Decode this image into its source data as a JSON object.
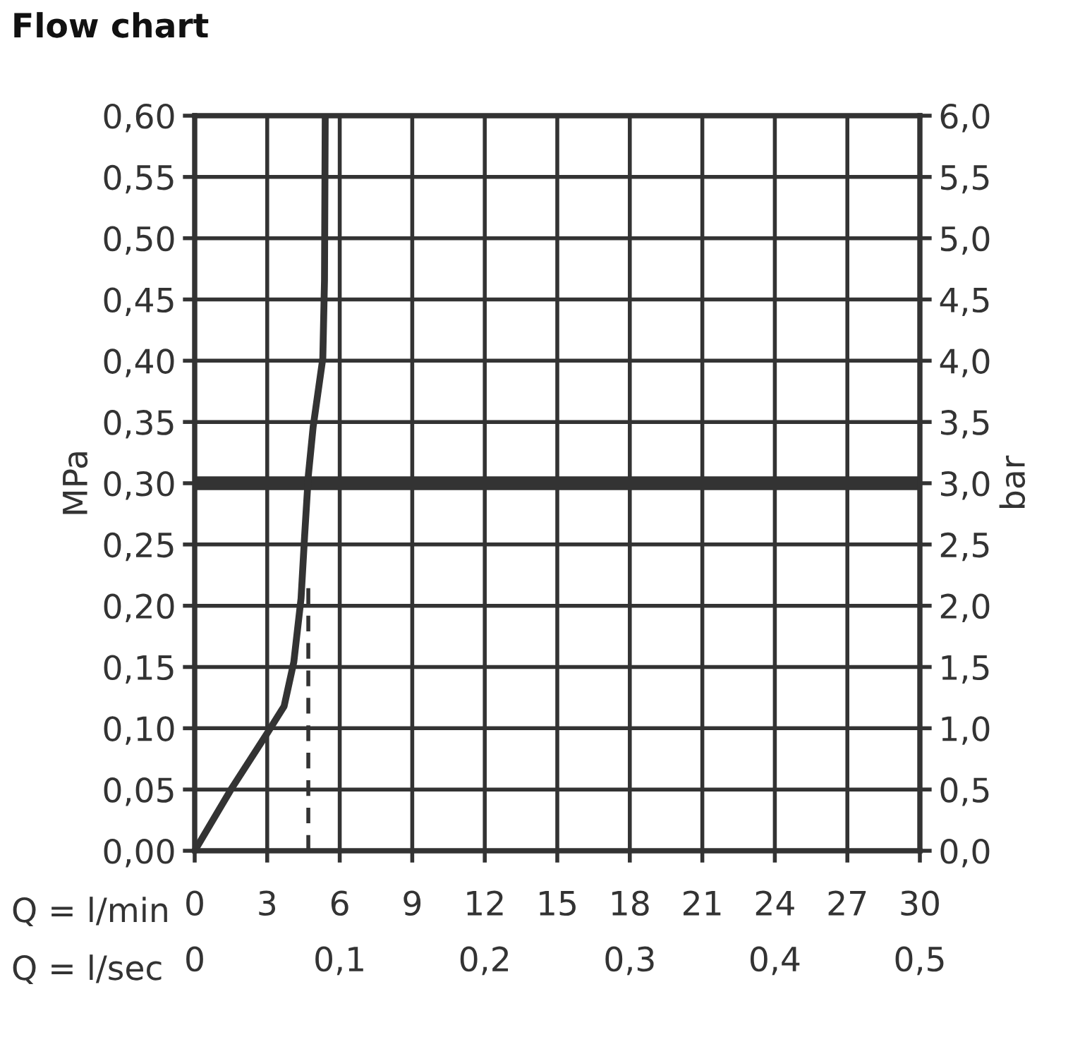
{
  "chart_data": {
    "type": "line",
    "title": "Flow chart",
    "xlabel": "Q = l/min",
    "x2label": "Q = l/sec",
    "ylabel": "MPa",
    "y2label": "bar",
    "xlim": [
      0,
      30
    ],
    "xticks": [
      0,
      3,
      6,
      9,
      12,
      15,
      18,
      21,
      24,
      27,
      30
    ],
    "x2lim": [
      0,
      0.5
    ],
    "x2ticks": [
      0,
      {
        "value": 0.1,
        "label": "0,1"
      },
      {
        "value": 0.2,
        "label": "0,2"
      },
      {
        "value": 0.3,
        "label": "0,3"
      },
      {
        "value": 0.4,
        "label": "0,4"
      },
      {
        "value": 0.5,
        "label": "0,5"
      }
    ],
    "ylim": [
      0,
      0.6
    ],
    "yticks": [
      {
        "value": 0,
        "label": "0,00"
      },
      {
        "value": 0.05,
        "label": "0,05"
      },
      {
        "value": 0.1,
        "label": "0,10"
      },
      {
        "value": 0.15,
        "label": "0,15"
      },
      {
        "value": 0.2,
        "label": "0,20"
      },
      {
        "value": 0.25,
        "label": "0,25"
      },
      {
        "value": 0.3,
        "label": "0,30"
      },
      {
        "value": 0.35,
        "label": "0,35"
      },
      {
        "value": 0.4,
        "label": "0,40"
      },
      {
        "value": 0.45,
        "label": "0,45"
      },
      {
        "value": 0.5,
        "label": "0,50"
      },
      {
        "value": 0.55,
        "label": "0,55"
      },
      {
        "value": 0.6,
        "label": "0,60"
      }
    ],
    "y2lim": [
      0,
      6
    ],
    "y2ticks": [
      {
        "value": 0,
        "label": "0,0"
      },
      {
        "value": 0.5,
        "label": "0,5"
      },
      {
        "value": 1,
        "label": "1,0"
      },
      {
        "value": 1.5,
        "label": "1,5"
      },
      {
        "value": 2,
        "label": "2,0"
      },
      {
        "value": 2.5,
        "label": "2,5"
      },
      {
        "value": 3,
        "label": "3,0"
      },
      {
        "value": 3.5,
        "label": "3,5"
      },
      {
        "value": 4,
        "label": "4,0"
      },
      {
        "value": 4.5,
        "label": "4,5"
      },
      {
        "value": 5,
        "label": "5,0"
      },
      {
        "value": 5.5,
        "label": "5,5"
      },
      {
        "value": 6,
        "label": "6,0"
      }
    ],
    "grid": true,
    "legend": false,
    "marker": "none",
    "series": [
      {
        "color": "#333333",
        "line_style": "solid",
        "x": [
          0,
          1.5,
          3,
          3.7,
          4.1,
          4.4,
          4.55,
          4.7,
          4.9,
          5.3,
          5.37,
          5.4
        ],
        "values": [
          0,
          0.05,
          0.096,
          0.118,
          0.154,
          0.206,
          0.258,
          0.306,
          0.346,
          0.402,
          0.466,
          0.6
        ]
      },
      {
        "color": "#333333",
        "line_style": "dashed",
        "x": [
          4.7,
          4.7
        ],
        "values": [
          0,
          0.22
        ]
      }
    ],
    "ref_lines": [
      {
        "axis": "y",
        "value": 0.3,
        "color": "#333333"
      }
    ]
  }
}
